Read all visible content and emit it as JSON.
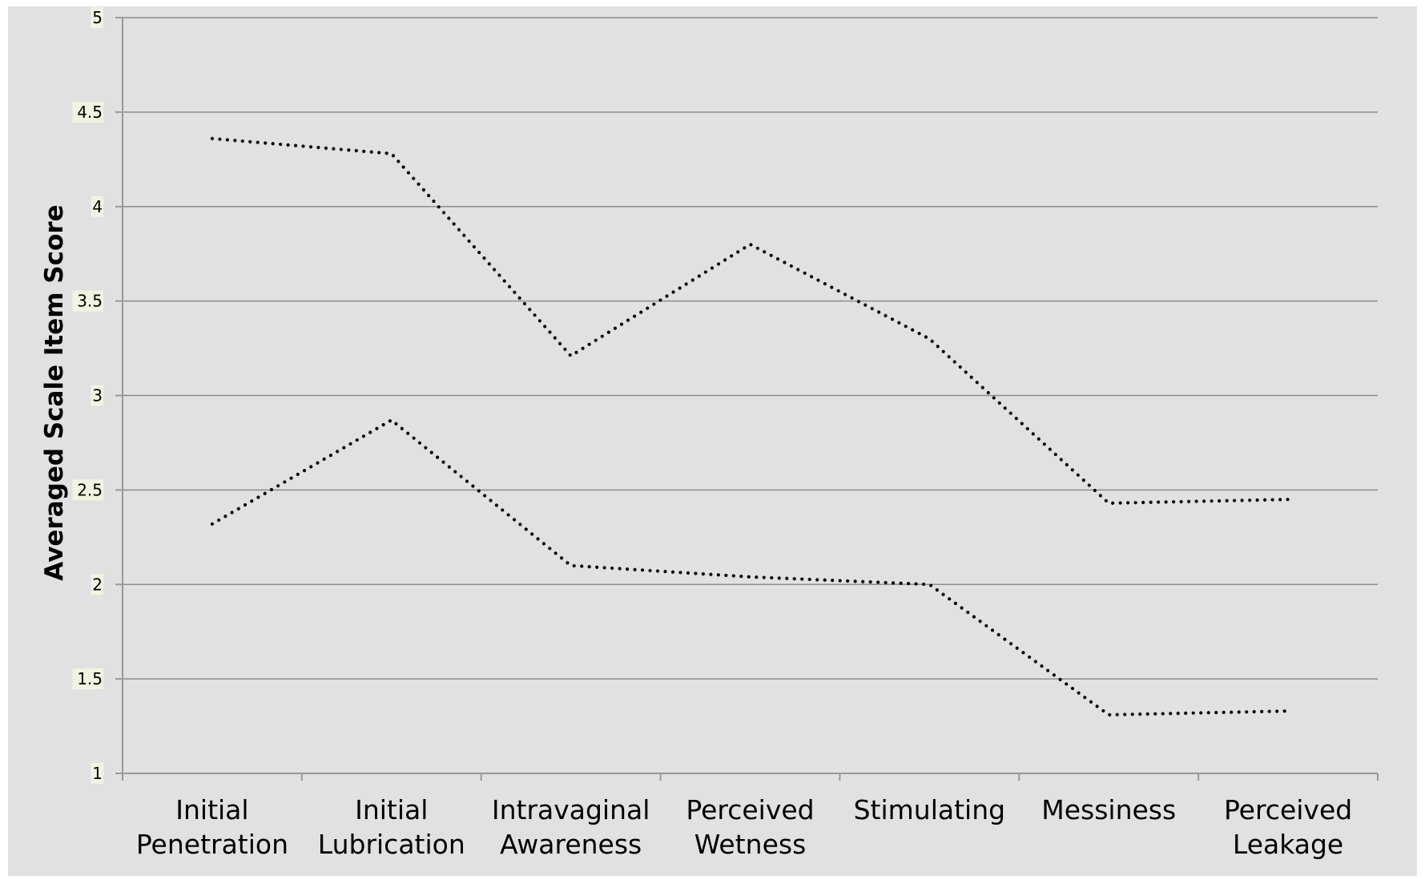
{
  "chart_data": {
    "type": "line",
    "title": "",
    "xlabel": "",
    "ylabel": "Averaged Scale Item Score",
    "ylim": [
      1,
      5
    ],
    "yticks": [
      "1",
      "1.5",
      "2",
      "2.5",
      "3",
      "3.5",
      "4",
      "4.5",
      "5"
    ],
    "grid": true,
    "legend": "none",
    "categories": [
      [
        "Initial",
        "Penetration"
      ],
      [
        "Initial",
        "Lubrication"
      ],
      [
        "Intravaginal",
        "Awareness"
      ],
      [
        "Perceived",
        "Wetness"
      ],
      [
        "Stimulating"
      ],
      [
        "Messiness"
      ],
      [
        "Perceived",
        "Leakage"
      ]
    ],
    "series": [
      {
        "values": [
          4.36,
          4.28,
          3.21,
          3.8,
          3.3,
          2.43,
          2.45
        ]
      },
      {
        "values": [
          2.32,
          2.87,
          2.1,
          2.04,
          2.0,
          1.31,
          1.33
        ]
      }
    ],
    "colors": {
      "plot_background": "#e1e1e1",
      "gridline": "#8c8c8c",
      "axis": "#999999",
      "series_line": "#000000",
      "tick_label_background": "#f3f3e2"
    }
  }
}
